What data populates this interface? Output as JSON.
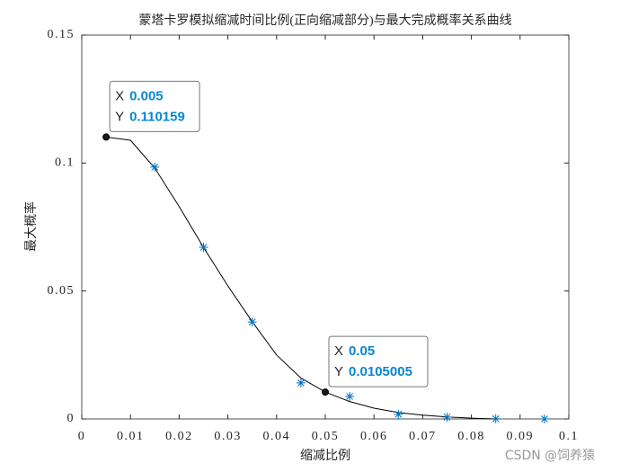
{
  "chart_data": {
    "type": "line",
    "title": "蒙塔卡罗模拟缩减时间比例(正向缩减部分)与最大完成概率关系曲线",
    "x_label": "缩减比例",
    "y_label": "最大概率",
    "xlim": [
      0,
      0.1
    ],
    "xticks": [
      0,
      0.01,
      0.02,
      0.03,
      0.04,
      0.05,
      0.06,
      0.07,
      0.08,
      0.09,
      0.1
    ],
    "ylim": [
      0,
      0.15
    ],
    "yticks": [
      0,
      0.05,
      0.1,
      0.15
    ],
    "series": [
      {
        "color": "#000000",
        "style": "line",
        "x": [
          0.005,
          0.01,
          0.015,
          0.02,
          0.025,
          0.03,
          0.035,
          0.04,
          0.045,
          0.05,
          0.055,
          0.06,
          0.065,
          0.07,
          0.075,
          0.08,
          0.085
        ],
        "values": [
          0.110159,
          0.1089,
          0.098,
          0.083,
          0.067,
          0.052,
          0.038,
          0.025,
          0.016,
          0.0105005,
          0.0068,
          0.0042,
          0.0025,
          0.0015,
          0.0008,
          0.0003,
          0.0
        ]
      },
      {
        "color": "#0072bd",
        "style": "asterisk",
        "x": [
          0.015,
          0.025,
          0.035,
          0.045,
          0.055,
          0.065,
          0.075,
          0.085,
          0.095
        ],
        "values": [
          0.0984,
          0.0671,
          0.0379,
          0.0141,
          0.0088,
          0.0018,
          0.0007,
          0.0001,
          0.0
        ]
      }
    ],
    "datatips": [
      {
        "x_caption": "X",
        "x": 0.005,
        "y_caption": "Y",
        "y": 0.110159
      },
      {
        "x_caption": "X",
        "x": 0.05,
        "y_caption": "Y",
        "y": 0.0105005
      }
    ],
    "watermark": "CSDN @饲养猿"
  }
}
